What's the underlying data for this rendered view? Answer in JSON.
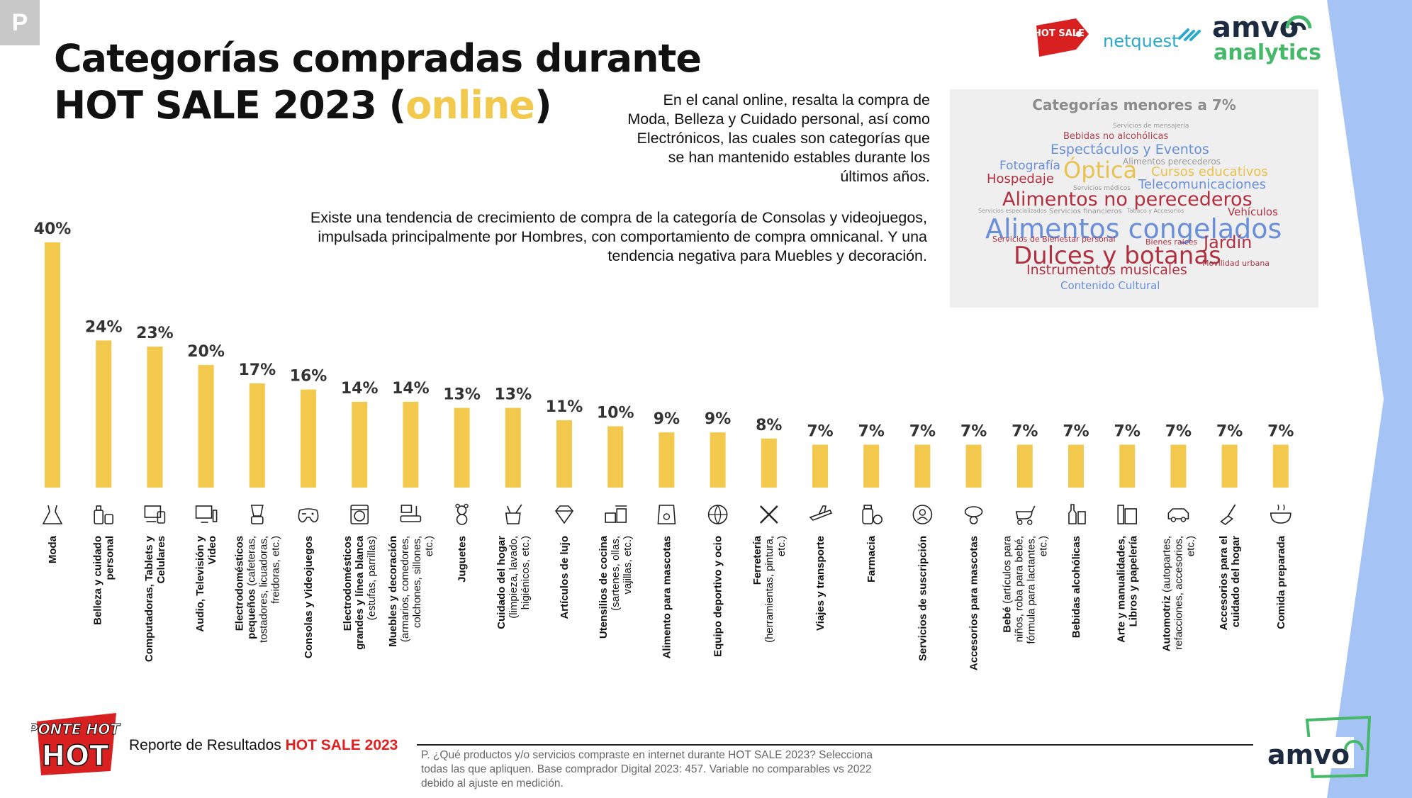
{
  "badge": "P",
  "title": {
    "line1": "Categorías compradas durante",
    "line2_pre": "HOT SALE 2023 (",
    "line2_hl": "online",
    "line2_post": ")"
  },
  "logos": {
    "hotsale": "HOT SALE",
    "netquest": "netquest",
    "amvo": "amvo",
    "amvo_sub": "analytics"
  },
  "paragraph1": "En el canal online, resalta la compra de Moda, Belleza y Cuidado personal, así como Electrónicos, las cuales son categorías que se han mantenido estables durante los últimos años.",
  "paragraph2": "Existe una tendencia de crecimiento de compra de la categoría de Consolas y videojuegos, impulsada principalmente por Hombres, con comportamiento de compra omnicanal. Y una tendencia negativa para Muebles y decoración.",
  "word_cloud": {
    "title": "Categorías menores a 7%",
    "words": [
      {
        "text": "Servicios de mensajería",
        "color": "#9b9b9b",
        "size": 9
      },
      {
        "text": "Bebidas no alcohólicas",
        "color": "#b04050",
        "size": 13
      },
      {
        "text": "Espectáculos y Eventos",
        "color": "#6a8fd8",
        "size": 19
      },
      {
        "text": "Alimentos perecederos",
        "color": "#9b9b9b",
        "size": 12
      },
      {
        "text": "Fotografía",
        "color": "#6a8fd8",
        "size": 17
      },
      {
        "text": "Óptica",
        "color": "#e8c24e",
        "size": 32
      },
      {
        "text": "Cursos educativos",
        "color": "#e8c24e",
        "size": 18
      },
      {
        "text": "Hospedaje",
        "color": "#b03040",
        "size": 18
      },
      {
        "text": "Telecomunicaciones",
        "color": "#6a8fd8",
        "size": 18
      },
      {
        "text": "Servicios médicos",
        "color": "#9b9b9b",
        "size": 9
      },
      {
        "text": "Alimentos no perecederos",
        "color": "#b03040",
        "size": 27
      },
      {
        "text": "Servicios especializados",
        "color": "#9b9b9b",
        "size": 8
      },
      {
        "text": "Servicios financieros",
        "color": "#9b9b9b",
        "size": 10
      },
      {
        "text": "Tabaco y Accesorios",
        "color": "#9b9b9b",
        "size": 8
      },
      {
        "text": "Alimentos congelados",
        "color": "#6a8fd8",
        "size": 38
      },
      {
        "text": "Vehículos",
        "color": "#b03040",
        "size": 15
      },
      {
        "text": "Servicios de Bienestar personal",
        "color": "#b03040",
        "size": 11
      },
      {
        "text": "Bienes raíces",
        "color": "#b03040",
        "size": 11
      },
      {
        "text": "Jardín",
        "color": "#b03040",
        "size": 24
      },
      {
        "text": "Dulces y botanas",
        "color": "#b03040",
        "size": 34
      },
      {
        "text": "Movilidad urbana",
        "color": "#b03040",
        "size": 11
      },
      {
        "text": "Instrumentos musicales",
        "color": "#b03040",
        "size": 19
      },
      {
        "text": "Contenido Cultural",
        "color": "#6a8fd8",
        "size": 15
      }
    ]
  },
  "chart_data": {
    "type": "bar",
    "bar_color": "#f2c94c",
    "ylim": [
      0,
      40
    ],
    "categories": [
      "Moda",
      "Belleza y cuidado personal",
      "Computadoras, Tablets y Celulares",
      "Audio, Televisión y Video",
      "Electrodomésticos pequeños (cafeteras, tostadores, licuadoras, freidoras, etc.)",
      "Consolas y Videojuegos",
      "Electrodomésticos grandes y línea blanca (estufas, parrillas)",
      "Muebles y decoración (armarios, comedores, colchones, sillones, etc.)",
      "Juguetes",
      "Cuidado del hogar (limpieza, lavado, higiénicos, etc.)",
      "Artículos de lujo",
      "Utensilios de cocina (sartenes, ollas, vajillas, etc.)",
      "Alimento para mascotas",
      "Equipo deportivo y ocio",
      "Ferretería (herramientas, pintura, etc.)",
      "Viajes y transporte",
      "Farmacia",
      "Servicios de suscripción",
      "Accesorios para mascotas",
      "Bebé (artículos para niños, roba para bebé, fórmula para lactantes, etc.)",
      "Bebidas alcohólicas",
      "Arte y manualidades, Libros y papelería",
      "Automotriz (autopartes, refacciones, accesorios, etc.)",
      "Accesorios para el cuidado del hogar",
      "Comida preparada"
    ],
    "label_bold": [
      "Moda",
      "Belleza y cuidado personal",
      "Computadoras, Tablets y Celulares",
      "Audio, Televisión y Video",
      "Electrodomésticos pequeños",
      "Consolas y Videojuegos",
      "Electrodomésticos grandes y línea blanca",
      "Muebles y decoración",
      "Juguetes",
      "Cuidado del hogar",
      "Artículos de lujo",
      "Utensilios de cocina",
      "Alimento para mascotas",
      "Equipo deportivo y ocio",
      "Ferretería",
      "Viajes y transporte",
      "Farmacia",
      "Servicios de suscripción",
      "Accesorios para mascotas",
      "Bebé",
      "Bebidas alcohólicas",
      "Arte y manualidades, Libros y papelería",
      "Automotriz",
      "Accesorios para el cuidado del hogar",
      "Comida preparada"
    ],
    "label_normal": [
      "",
      "",
      "",
      "",
      "(cafeteras, tostadores, licuadoras, freidoras, etc.)",
      "",
      "(estufas, parrillas)",
      "(armarios, comedores, colchones, sillones, etc.)",
      "",
      "(limpieza, lavado, higiénicos, etc.)",
      "",
      "(sartenes, ollas, vajillas, etc.)",
      "",
      "",
      "(herramientas, pintura, etc.)",
      "",
      "",
      "",
      "",
      "(artículos para niños, roba para bebé, fórmula para lactantes, etc.)",
      "",
      "",
      "(autopartes, refacciones, accesorios, etc.)",
      "",
      ""
    ],
    "values": [
      40,
      24,
      23,
      20,
      17,
      16,
      14,
      14,
      13,
      13,
      11,
      10,
      9,
      9,
      8,
      7,
      7,
      7,
      7,
      7,
      7,
      7,
      7,
      7,
      7
    ],
    "value_labels": [
      "40%",
      "24%",
      "23%",
      "20%",
      "17%",
      "16%",
      "14%",
      "14%",
      "13%",
      "13%",
      "11%",
      "10%",
      "9%",
      "9%",
      "8%",
      "7%",
      "7%",
      "7%",
      "7%",
      "7%",
      "7%",
      "7%",
      "7%",
      "7%",
      "7%"
    ],
    "icons": [
      "dress-icon",
      "beauty-products-icon",
      "devices-icon",
      "tv-icon",
      "blender-icon",
      "gamepad-icon",
      "washing-machine-icon",
      "furniture-icon",
      "teddy-bear-icon",
      "cleaning-icon",
      "diamond-icon",
      "cooking-pots-icon",
      "pet-food-icon",
      "sports-balls-icon",
      "tools-icon",
      "airplane-icon",
      "pharmacy-icon",
      "subscription-icon",
      "pet-collar-icon",
      "stroller-icon",
      "bottles-icon",
      "stationery-icon",
      "car-icon",
      "broom-icon",
      "bowl-icon"
    ]
  },
  "footer": {
    "report_pre": "Reporte de Resultados ",
    "report_hl": "HOT SALE 2023",
    "note": "P. ¿Qué productos y/o servicios compraste en internet durante HOT SALE 2023? Selecciona todas las que apliquen. Base comprador Digital 2023: 457. Variable no comparables vs 2022 debido al ajuste en medición.",
    "ponte": "PONTE HOT",
    "amvo": "amvo"
  }
}
